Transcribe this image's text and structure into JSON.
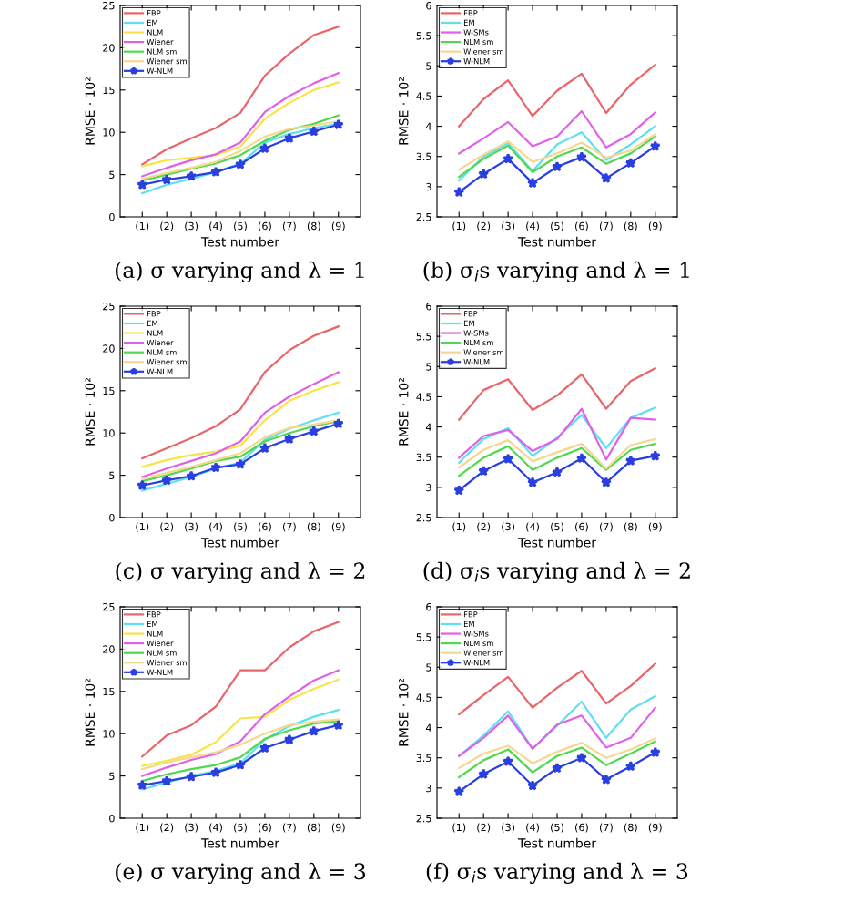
{
  "chart_data": [
    {
      "type": "line",
      "title": "(a) σ varying and λ = 1",
      "xlabel": "Test number",
      "ylabel": "RMSE · 10²",
      "categories": [
        "(1)",
        "(2)",
        "(3)",
        "(4)",
        "(5)",
        "(6)",
        "(7)",
        "(8)",
        "(9)"
      ],
      "ylim": [
        0,
        25
      ],
      "yticks": [
        0,
        5,
        10,
        15,
        20,
        25
      ],
      "legend": "top left",
      "grid": false,
      "series": [
        {
          "name": "FBP",
          "color": "#e8656a",
          "values": [
            6.2,
            8,
            9.3,
            10.5,
            12.3,
            16.7,
            19.3,
            21.5,
            22.5
          ]
        },
        {
          "name": "EM",
          "color": "#5ee0f0",
          "values": [
            2.8,
            3.8,
            4.5,
            5.3,
            6.3,
            8.8,
            9.8,
            10.5,
            11.0
          ]
        },
        {
          "name": "NLM",
          "color": "#f5e54a",
          "values": [
            6.0,
            6.7,
            7.0,
            7.3,
            8.3,
            11.6,
            13.5,
            15,
            15.9
          ]
        },
        {
          "name": "Wiener",
          "color": "#e060e8",
          "values": [
            4.8,
            5.8,
            6.7,
            7.4,
            8.8,
            12.4,
            14.3,
            15.8,
            17
          ]
        },
        {
          "name": "NLM sm",
          "color": "#50d850",
          "values": [
            4.3,
            5.0,
            5.7,
            6.3,
            7.3,
            9.0,
            10.3,
            11.0,
            12.0
          ]
        },
        {
          "name": "Wiener sm",
          "color": "#f5d890",
          "values": [
            4.5,
            5.2,
            5.8,
            6.5,
            7.8,
            9.5,
            10.4,
            10.8,
            11.3
          ]
        },
        {
          "name": "W-NLM",
          "color": "#2a3fe0",
          "marker": "star",
          "values": [
            3.8,
            4.4,
            4.8,
            5.3,
            6.2,
            8.1,
            9.3,
            10.1,
            10.9
          ]
        }
      ]
    },
    {
      "type": "line",
      "title": "(b) σ$_{i}$s varying and λ = 1",
      "xlabel": "Test number",
      "ylabel": "RMSE · 10²",
      "categories": [
        "(1)",
        "(2)",
        "(3)",
        "(4)",
        "(5)",
        "(6)",
        "(7)",
        "(8)",
        "(9)"
      ],
      "ylim": [
        2.5,
        6
      ],
      "yticks": [
        2.5,
        3,
        3.5,
        4,
        4.5,
        5,
        5.5,
        6
      ],
      "legend": "top left",
      "grid": false,
      "series": [
        {
          "name": "FBP",
          "color": "#e8656a",
          "values": [
            4.0,
            4.45,
            4.76,
            4.17,
            4.59,
            4.87,
            4.22,
            4.69,
            5.02
          ]
        },
        {
          "name": "EM",
          "color": "#5ee0f0",
          "values": [
            3.1,
            3.5,
            3.72,
            3.26,
            3.7,
            3.9,
            3.44,
            3.7,
            4.0
          ]
        },
        {
          "name": "W-SMs",
          "color": "#e060e8",
          "values": [
            3.55,
            3.8,
            4.07,
            3.67,
            3.83,
            4.25,
            3.65,
            3.87,
            4.23
          ]
        },
        {
          "name": "NLM sm",
          "color": "#50d850",
          "values": [
            3.16,
            3.46,
            3.68,
            3.24,
            3.5,
            3.65,
            3.38,
            3.55,
            3.83
          ]
        },
        {
          "name": "Wiener sm",
          "color": "#f5d890",
          "values": [
            3.28,
            3.53,
            3.75,
            3.41,
            3.55,
            3.73,
            3.48,
            3.6,
            3.87
          ]
        },
        {
          "name": "W-NLM",
          "color": "#2a3fe0",
          "marker": "star",
          "values": [
            2.91,
            3.21,
            3.46,
            3.06,
            3.33,
            3.49,
            3.14,
            3.39,
            3.67
          ]
        }
      ]
    },
    {
      "type": "line",
      "title": "(c) σ varying and λ = 2",
      "xlabel": "Test number",
      "ylabel": "RMSE · 10²",
      "categories": [
        "(1)",
        "(2)",
        "(3)",
        "(4)",
        "(5)",
        "(6)",
        "(7)",
        "(8)",
        "(9)"
      ],
      "ylim": [
        0,
        25
      ],
      "yticks": [
        0,
        5,
        10,
        15,
        20,
        25
      ],
      "legend": "top left",
      "grid": false,
      "series": [
        {
          "name": "FBP",
          "color": "#e8656a",
          "values": [
            7,
            8.2,
            9.4,
            10.8,
            12.8,
            17.2,
            19.8,
            21.5,
            22.6
          ]
        },
        {
          "name": "EM",
          "color": "#5ee0f0",
          "values": [
            3.2,
            4,
            4.8,
            5.8,
            6.5,
            9.2,
            10.5,
            11.5,
            12.4
          ]
        },
        {
          "name": "NLM",
          "color": "#f5e54a",
          "values": [
            6,
            6.8,
            7.4,
            7.8,
            8.5,
            11.5,
            13.8,
            15,
            16
          ]
        },
        {
          "name": "Wiener",
          "color": "#e060e8",
          "values": [
            4.8,
            5.8,
            6.7,
            7.6,
            9,
            12.4,
            14.3,
            15.8,
            17.2
          ]
        },
        {
          "name": "NLM sm",
          "color": "#50d850",
          "values": [
            4.3,
            5,
            5.8,
            6.7,
            7.2,
            9,
            10,
            10.8,
            11.4
          ]
        },
        {
          "name": "Wiener sm",
          "color": "#f5d890",
          "values": [
            4.6,
            5.3,
            6,
            6.8,
            7.6,
            9.5,
            10.6,
            11,
            11.5
          ]
        },
        {
          "name": "W-NLM",
          "color": "#2a3fe0",
          "marker": "star",
          "values": [
            3.8,
            4.4,
            4.9,
            5.9,
            6.3,
            8.2,
            9.3,
            10.2,
            11.1
          ]
        }
      ]
    },
    {
      "type": "line",
      "title": "(d) σ$_{i}$s varying and λ = 2",
      "xlabel": "Test number",
      "ylabel": "RMSE · 10²",
      "categories": [
        "(1)",
        "(2)",
        "(3)",
        "(4)",
        "(5)",
        "(6)",
        "(7)",
        "(8)",
        "(9)"
      ],
      "ylim": [
        2.5,
        6
      ],
      "yticks": [
        2.5,
        3,
        3.5,
        4,
        4.5,
        5,
        5.5,
        6
      ],
      "legend": "top left",
      "grid": false,
      "series": [
        {
          "name": "FBP",
          "color": "#e8656a",
          "values": [
            4.12,
            4.61,
            4.79,
            4.28,
            4.52,
            4.87,
            4.3,
            4.76,
            4.97
          ]
        },
        {
          "name": "EM",
          "color": "#5ee0f0",
          "values": [
            3.41,
            3.8,
            3.98,
            3.52,
            3.82,
            4.2,
            3.65,
            4.15,
            4.32
          ]
        },
        {
          "name": "W-SMs",
          "color": "#e060e8",
          "values": [
            3.49,
            3.85,
            3.95,
            3.6,
            3.8,
            4.3,
            3.46,
            4.15,
            4.12
          ]
        },
        {
          "name": "NLM sm",
          "color": "#50d850",
          "values": [
            3.19,
            3.49,
            3.68,
            3.29,
            3.49,
            3.65,
            3.29,
            3.62,
            3.72
          ]
        },
        {
          "name": "Wiener sm",
          "color": "#f5d890",
          "values": [
            3.33,
            3.62,
            3.78,
            3.43,
            3.58,
            3.72,
            3.31,
            3.7,
            3.8
          ]
        },
        {
          "name": "W-NLM",
          "color": "#2a3fe0",
          "marker": "star",
          "values": [
            2.95,
            3.27,
            3.47,
            3.08,
            3.25,
            3.48,
            3.08,
            3.44,
            3.52
          ]
        }
      ]
    },
    {
      "type": "line",
      "title": "(e) σ varying and λ = 3",
      "xlabel": "Test number",
      "ylabel": "RMSE · 10²",
      "categories": [
        "(1)",
        "(2)",
        "(3)",
        "(4)",
        "(5)",
        "(6)",
        "(7)",
        "(8)",
        "(9)"
      ],
      "ylim": [
        0,
        25
      ],
      "yticks": [
        0,
        5,
        10,
        15,
        20,
        25
      ],
      "legend": "top left",
      "grid": false,
      "series": [
        {
          "name": "FBP",
          "color": "#e8656a",
          "values": [
            7.3,
            9.8,
            11,
            13.2,
            17.5,
            17.5,
            20.2,
            22.1,
            23.2
          ]
        },
        {
          "name": "EM",
          "color": "#5ee0f0",
          "values": [
            3.4,
            4.2,
            5,
            5.6,
            6.5,
            9.3,
            10.9,
            12,
            12.8
          ]
        },
        {
          "name": "NLM",
          "color": "#f5e54a",
          "values": [
            6.2,
            6.8,
            7.5,
            9,
            11.8,
            12,
            14,
            15.3,
            16.4
          ]
        },
        {
          "name": "Wiener",
          "color": "#e060e8",
          "values": [
            5,
            6,
            6.9,
            7.6,
            9.1,
            12.3,
            14.4,
            16.3,
            17.5
          ]
        },
        {
          "name": "NLM sm",
          "color": "#50d850",
          "values": [
            4.4,
            5.2,
            5.8,
            6.3,
            7.2,
            9.4,
            10.4,
            11.2,
            11.5
          ]
        },
        {
          "name": "Wiener sm",
          "color": "#f5d890",
          "values": [
            5.8,
            6.6,
            7.2,
            7.8,
            8.7,
            10,
            11,
            11.4,
            11.7
          ]
        },
        {
          "name": "W-NLM",
          "color": "#2a3fe0",
          "marker": "star",
          "values": [
            3.9,
            4.4,
            4.9,
            5.4,
            6.3,
            8.3,
            9.3,
            10.3,
            11
          ]
        }
      ]
    },
    {
      "type": "line",
      "title": "(f) σ$_{i}$s varying and λ = 3",
      "xlabel": "Test number",
      "ylabel": "RMSE · 10²",
      "categories": [
        "(1)",
        "(2)",
        "(3)",
        "(4)",
        "(5)",
        "(6)",
        "(7)",
        "(8)",
        "(9)"
      ],
      "ylim": [
        2.5,
        6
      ],
      "yticks": [
        2.5,
        3,
        3.5,
        4,
        4.5,
        5,
        5.5,
        6
      ],
      "legend": "top left",
      "grid": false,
      "series": [
        {
          "name": "FBP",
          "color": "#e8656a",
          "values": [
            4.22,
            4.54,
            4.84,
            4.33,
            4.66,
            4.94,
            4.4,
            4.69,
            5.06
          ]
        },
        {
          "name": "EM",
          "color": "#5ee0f0",
          "values": [
            3.53,
            3.87,
            4.27,
            3.65,
            4.03,
            4.43,
            3.83,
            4.3,
            4.52
          ]
        },
        {
          "name": "W-SMs",
          "color": "#e060e8",
          "values": [
            3.53,
            3.83,
            4.2,
            3.65,
            4.05,
            4.2,
            3.67,
            3.83,
            4.33
          ]
        },
        {
          "name": "NLM sm",
          "color": "#50d850",
          "values": [
            3.18,
            3.46,
            3.64,
            3.26,
            3.53,
            3.67,
            3.38,
            3.57,
            3.77
          ]
        },
        {
          "name": "Wiener sm",
          "color": "#f5d890",
          "values": [
            3.33,
            3.57,
            3.7,
            3.41,
            3.6,
            3.75,
            3.5,
            3.64,
            3.82
          ]
        },
        {
          "name": "W-NLM",
          "color": "#2a3fe0",
          "marker": "star",
          "values": [
            2.94,
            3.23,
            3.44,
            3.04,
            3.33,
            3.5,
            3.14,
            3.36,
            3.59
          ]
        }
      ]
    }
  ]
}
